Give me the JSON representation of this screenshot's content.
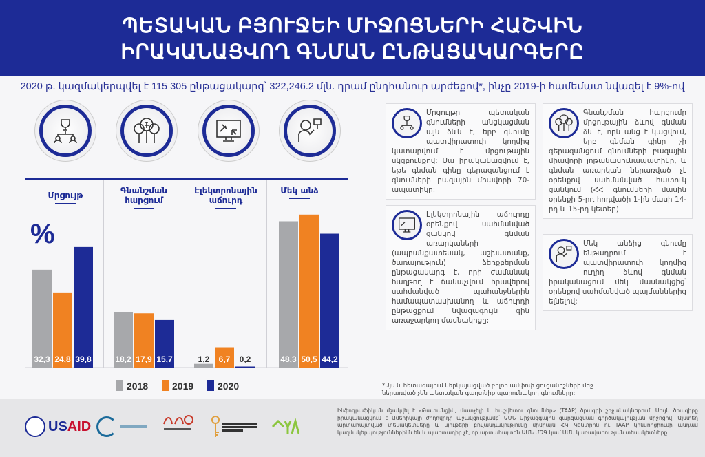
{
  "header": {
    "title_line1": "ՊԵՏԱԿԱՆ ԲՅՈՒՋԵԻ ՄԻՋՈՑՆԵՐԻ ՀԱՇՎԻՆ",
    "title_line2": "ԻՐԱԿԱՆԱՑՎՈՂ ԳՆՄԱՆ ԸՆԹԱՑԱԿԱՐԳԵՐԸ"
  },
  "subtitle": "2020 թ. կազմակերպվել է 115 305 ընթացակարգ՝ 322,246.2 մլն. դրամ ընդհանուր արժեքով*, ինչը 2019-ի համեմատ նվազել է 9%-ով",
  "chart_data": {
    "type": "bar",
    "unit_label": "%",
    "categories": [
      "Մրցույթ",
      "Գնանշման հարցում",
      "Էլեկտրոնային աճուրդ",
      "Մեկ անձ"
    ],
    "series": [
      {
        "name": "2018",
        "color": "#a7a8ab",
        "values": [
          32.3,
          18.2,
          1.2,
          48.3
        ]
      },
      {
        "name": "2019",
        "color": "#f08222",
        "values": [
          24.8,
          17.9,
          6.7,
          50.5
        ]
      },
      {
        "name": "2020",
        "color": "#1d2b96",
        "values": [
          39.8,
          15.7,
          0.2,
          44.2
        ]
      }
    ],
    "data_labels": [
      [
        "32,3",
        "18,2",
        "1,2",
        "48,3"
      ],
      [
        "24,8",
        "17,9",
        "6,7",
        "50,5"
      ],
      [
        "39,8",
        "15,7",
        "0,2",
        "44,2"
      ]
    ],
    "legend": "bottom"
  },
  "icons": [
    "tournament-bracket-icon",
    "dram-balloons-icon",
    "online-auction-icon",
    "single-person-icon"
  ],
  "boxes": [
    {
      "icon": "tournament-bracket-icon",
      "text": "Մրցույթը պետական գնումների անցկացման այն ձևն է, երբ գնումը պատվիրատուի կողմից կատարվում է մրցութային սկզբունքով: Սա իրականացվում է, եթե գնման գինը գերազանցում է գնումների բազային միավորի 70-ապատիկը:"
    },
    {
      "icon": "dram-balloons-icon",
      "text": "Գնանշման հարցումը մրցութային ձևով գնման ձև է, որն անց է կացվում, երբ գնման գինը չի գերազանցում գնումների բազային միավորի յոթանասունապատիկը, և գնման առարկան ներառված չէ օրենքով սահմանված հատուկ ցանկում (ՀՀ գնումների մասին օրենքի 5-րդ հոդվածի 1-ին մասի 14-րդ և 15-րդ կետեր)"
    },
    {
      "icon": "online-auction-icon",
      "text": "Էլեկտրոնային աճուրդը օրենքով սահմանված ցանկով գնման առարկաների (ապրանքատեսակ, աշխատանք, ծառայություն) ձեռքբերման ընթացակարգ է, որի ժամանակ հաղթող է ճանաչվում հրավերով սահմանված պահանջներին համապատասխանող և աճուրդի ընթացքում նվազագույն գին առաջարկող մասնակիցը:"
    },
    {
      "icon": "single-person-icon",
      "text": "Մեկ անձից գնումը ենթադրում է պատվիրատուի կողմից ուղիղ ձևով գնման իրականացում մեկ մասնակցից՝ օրենքով սահմանված պայմաններից ելնելով:"
    }
  ],
  "footnote": "*Այս և հետագայում ներկայացված բոլոր ամփոփ ցուցանիշների մեջ ներառված չեն պետական գաղտնիք պարունակող գնումները:",
  "footer": {
    "logos": [
      "USAID",
      "ՕՔՍՖՈՐԴ ԱՊԱԳԱՅԻ ԿԱՌԱՎԱՐՄԱՆ ՑԱՆՑ",
      "ngo center",
      "ԻՆՖՈՐՄԱՑԻԱՅԻ ԱԶԱՏՈՒԹՅԱՆ ԿԵՆՏՐՈՆ",
      "YYA"
    ],
    "disclaimer": "Ինֆոգրաֆիկան մշակվել է «Թափանցիկ, մատչելի և հաշվետու գնումներ» (TAAP) ծրագրի շրջանակներում: Սույն ծրագիրը իրականացվում է Ամերիկայի ժողովրդի աջակցությամբ՝ ԱՄՆ Միջազգային զարգացման գործակալության միջոցով: Այստեղ արտահայտված տեսակետները և նյութերի բովանդակությունը միմիայն ՀԿ Կենտրոն ու TAAP կոնսորցիումի անդամ կազմակերպություններինն են և պարտադիր չէ, որ արտահայտեն ԱՄՆ ՄԶԳ կամ ԱՄՆ կառավարության տեսակետները:"
  }
}
